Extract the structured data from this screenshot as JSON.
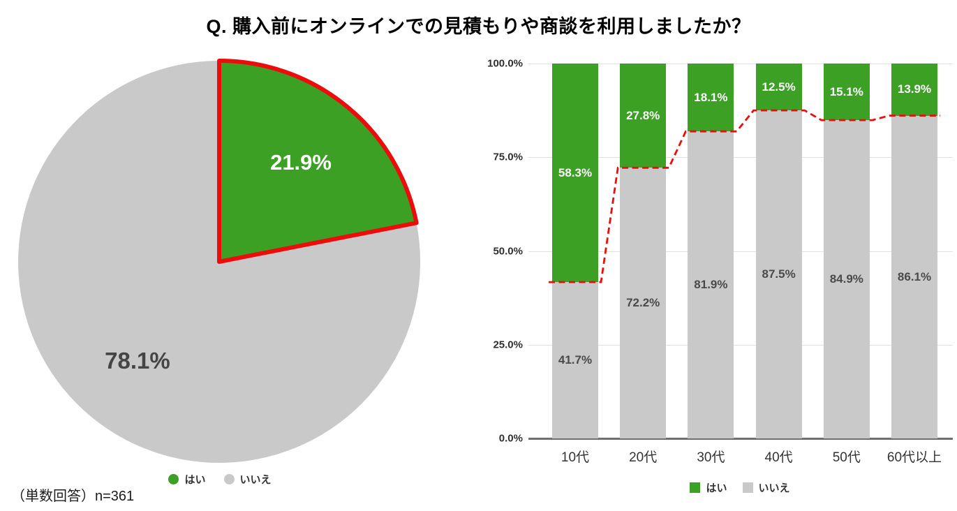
{
  "title": "Q. 購入前にオンラインでの見積もりや商談を利用しましたか？",
  "footnote": "（単数回答）n=361",
  "legend": {
    "yes": "はい",
    "no": "いいえ"
  },
  "colors": {
    "yes": "#3ba024",
    "no": "#c9c9c9",
    "highlight": "#ee0b0b",
    "grid": "#e0e0e0",
    "axis": "#6f6f6f",
    "label_on_green": "#ffffff",
    "label_on_gray": "#4a4a4a",
    "text": "#333333"
  },
  "chart_data": [
    {
      "type": "pie",
      "labels": [
        "はい",
        "いいえ"
      ],
      "values": [
        21.9,
        78.1
      ],
      "unit": "%",
      "highlighted_slice": "はい",
      "start_angle_deg": 0,
      "direction": "clockwise",
      "legend_position": "bottom",
      "annotation": "green はい slice outlined in red"
    },
    {
      "type": "bar",
      "stacked": true,
      "percent_of_total": true,
      "categories": [
        "10代",
        "20代",
        "30代",
        "40代",
        "50代",
        "60代以上"
      ],
      "series": [
        {
          "name": "はい",
          "values": [
            58.3,
            27.8,
            18.1,
            12.5,
            15.1,
            13.9
          ]
        },
        {
          "name": "いいえ",
          "values": [
            41.7,
            72.2,
            81.9,
            87.5,
            84.9,
            86.1
          ]
        }
      ],
      "yticks": [
        "100.0%",
        "75.0%",
        "50.0%",
        "25.0%",
        "0.0%"
      ],
      "ylim": [
        0,
        100
      ],
      "grid": true,
      "legend_position": "bottom",
      "annotation": "red dashed line tracing the はい/いいえ boundary across bars"
    }
  ]
}
